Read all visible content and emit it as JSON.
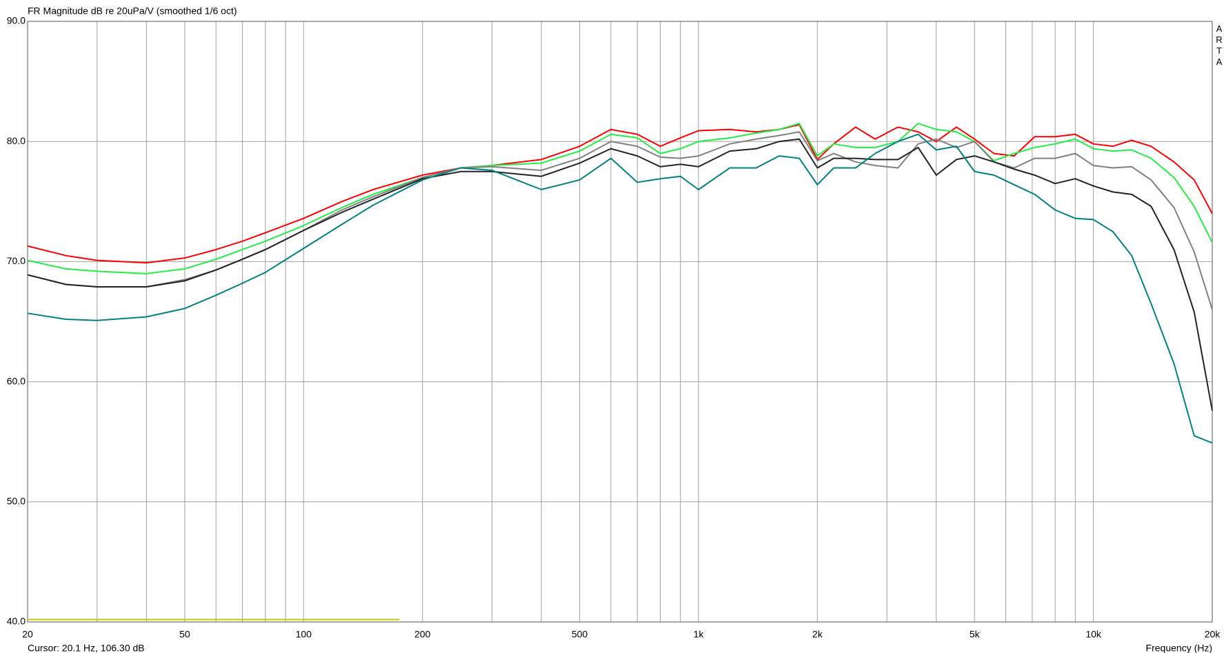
{
  "chart_data": {
    "type": "line",
    "title": "FR Magnitude dB re 20uPa/V (smoothed 1/6 oct)",
    "brand": "ARTA",
    "x_label": "Frequency (Hz)",
    "status": "Cursor: 20.1 Hz, 106.30 dB",
    "x_scale": "log",
    "grid": true,
    "xlim": [
      20,
      20000
    ],
    "ylim": [
      40,
      90
    ],
    "xticks": [
      20,
      50,
      100,
      200,
      500,
      {
        "value": 1000,
        "label": "1k"
      },
      {
        "value": 2000,
        "label": "2k"
      },
      {
        "value": 5000,
        "label": "5k"
      },
      {
        "value": 10000,
        "label": "10k"
      },
      {
        "value": 20000,
        "label": "20k"
      }
    ],
    "xgrid_minor": [
      30,
      40,
      60,
      70,
      80,
      90,
      300,
      400,
      600,
      700,
      800,
      900,
      3000,
      4000,
      6000,
      7000,
      8000,
      9000
    ],
    "yticks": [
      {
        "value": 40,
        "label": "40.0"
      },
      {
        "value": 50,
        "label": "50.0"
      },
      {
        "value": 60,
        "label": "60.0"
      },
      {
        "value": 70,
        "label": "70.0"
      },
      {
        "value": 80,
        "label": "80.0"
      },
      {
        "value": 90,
        "label": "90.0"
      }
    ],
    "x": [
      20,
      25,
      30,
      40,
      50,
      60,
      70,
      80,
      100,
      125,
      150,
      200,
      250,
      300,
      400,
      500,
      600,
      700,
      800,
      900,
      1000,
      1200,
      1400,
      1600,
      1800,
      2000,
      2200,
      2500,
      2800,
      3200,
      3600,
      4000,
      4500,
      5000,
      5600,
      6300,
      7100,
      8000,
      9000,
      10000,
      11200,
      12500,
      14000,
      16000,
      18000,
      20000
    ],
    "series": [
      {
        "color": "#ff0000",
        "values": [
          71.3,
          70.5,
          70.1,
          69.9,
          70.3,
          71.0,
          71.7,
          72.4,
          73.6,
          75.0,
          76.0,
          77.2,
          77.8,
          78.0,
          78.5,
          79.6,
          81.0,
          80.6,
          79.6,
          80.3,
          80.9,
          81.0,
          80.8,
          81.0,
          81.4,
          78.5,
          79.8,
          81.2,
          80.2,
          81.2,
          80.8,
          80.0,
          81.2,
          80.2,
          79.0,
          78.8,
          80.4,
          80.4,
          80.6,
          79.8,
          79.6,
          80.1,
          79.6,
          78.3,
          76.8,
          74.0
        ]
      },
      {
        "color": "#22ee44",
        "values": [
          70.1,
          69.4,
          69.2,
          69.0,
          69.4,
          70.2,
          71.0,
          71.7,
          73.0,
          74.5,
          75.6,
          77.0,
          77.8,
          78.0,
          78.2,
          79.2,
          80.6,
          80.3,
          79.0,
          79.4,
          80.0,
          80.3,
          80.7,
          81.0,
          81.5,
          78.8,
          79.8,
          79.5,
          79.5,
          80.0,
          81.5,
          81.0,
          80.8,
          80.0,
          78.4,
          79.0,
          79.5,
          79.8,
          80.2,
          79.4,
          79.2,
          79.3,
          78.6,
          77.0,
          74.6,
          71.6
        ]
      },
      {
        "color": "#808080",
        "values": [
          68.9,
          68.1,
          67.9,
          67.9,
          68.5,
          69.3,
          70.2,
          71.0,
          72.6,
          74.3,
          75.4,
          77.0,
          77.8,
          77.9,
          77.6,
          78.6,
          80.0,
          79.6,
          78.7,
          78.6,
          78.8,
          79.8,
          80.2,
          80.5,
          80.8,
          78.4,
          79.0,
          78.3,
          78.0,
          77.8,
          79.8,
          80.2,
          79.5,
          80.0,
          78.3,
          77.8,
          78.6,
          78.6,
          79.0,
          78.0,
          77.8,
          77.9,
          76.8,
          74.5,
          70.8,
          66.0
        ]
      },
      {
        "color": "#222222",
        "values": [
          68.9,
          68.1,
          67.9,
          67.9,
          68.4,
          69.3,
          70.2,
          71.0,
          72.6,
          74.1,
          75.2,
          76.9,
          77.5,
          77.5,
          77.1,
          78.2,
          79.4,
          78.8,
          77.9,
          78.1,
          77.9,
          79.2,
          79.4,
          80.0,
          80.2,
          77.8,
          78.6,
          78.6,
          78.5,
          78.5,
          79.5,
          77.2,
          78.5,
          78.8,
          78.3,
          77.7,
          77.2,
          76.5,
          76.9,
          76.3,
          75.8,
          75.6,
          74.6,
          71.0,
          65.8,
          57.6
        ]
      },
      {
        "color": "#008080",
        "values": [
          65.7,
          65.2,
          65.1,
          65.4,
          66.1,
          67.2,
          68.2,
          69.1,
          71.1,
          73.1,
          74.7,
          76.8,
          77.8,
          77.6,
          76.0,
          76.8,
          78.6,
          76.6,
          76.9,
          77.1,
          76.0,
          77.8,
          77.8,
          78.8,
          78.6,
          76.4,
          77.8,
          77.8,
          79.0,
          80.0,
          80.6,
          79.3,
          79.6,
          77.5,
          77.2,
          76.4,
          75.6,
          74.3,
          73.6,
          73.5,
          72.5,
          70.5,
          66.5,
          61.5,
          55.5,
          54.9
        ]
      },
      {
        "color": "#c8c800",
        "x": [
          20,
          175
        ],
        "values": [
          40.2,
          40.2
        ]
      }
    ]
  }
}
